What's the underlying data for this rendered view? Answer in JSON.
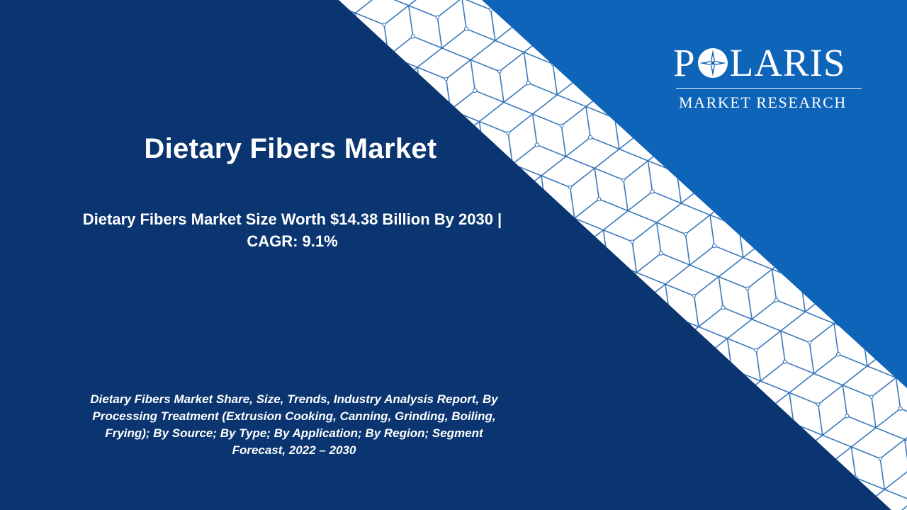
{
  "slide": {
    "title": "Dietary Fibers Market",
    "subtitle_line1": "Dietary Fibers Market Size Worth $14.38 Billion By 2030 |",
    "subtitle_line2": "CAGR: 9.1%",
    "description_line1": "Dietary Fibers Market Share, Size, Trends, Industry Analysis Report, By",
    "description_line2": "Processing Treatment (Extrusion Cooking, Canning, Grinding, Boiling,",
    "description_line3": "Frying); By Source; By Type; By Application; By Region; Segment",
    "description_line4": "Forecast, 2022 – 2030"
  },
  "logo": {
    "word_start": "P",
    "word_end": "LARIS",
    "tagline": "MARKET RESEARCH"
  },
  "colors": {
    "dark_navy": "#0a3570",
    "accent_blue": "#0e64b8",
    "band_white": "#ffffff",
    "pattern_line": "#2a6db5",
    "text": "#ffffff"
  }
}
